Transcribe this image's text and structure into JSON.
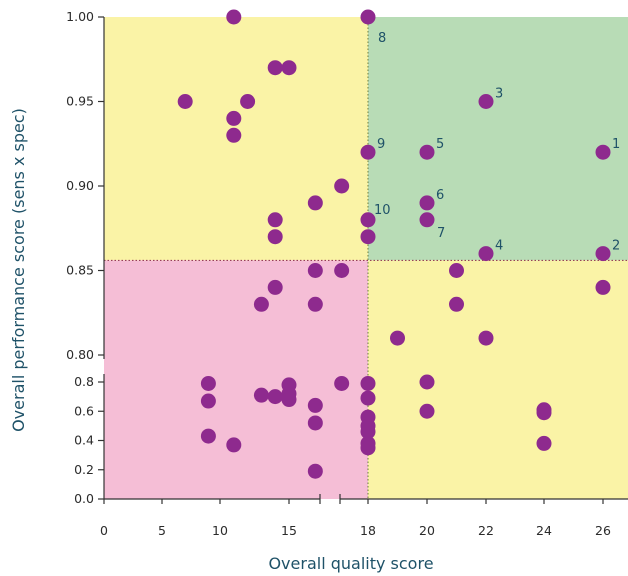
{
  "chart_data": {
    "type": "scatter",
    "xlabel": "Overall quality score",
    "ylabel": "Overall performance score (sens x spec)",
    "x_ticks": [
      "0",
      "5",
      "10",
      "15",
      "18",
      "20",
      "22",
      "24",
      "26"
    ],
    "x_tick_values": [
      0,
      5,
      10,
      15,
      18,
      20,
      22,
      24,
      26
    ],
    "y_upper_ticks": [
      "1.00",
      "0.95",
      "0.90",
      "0.85",
      "0.80"
    ],
    "y_upper_tick_values": [
      1.0,
      0.95,
      0.9,
      0.85,
      0.8
    ],
    "y_lower_ticks": [
      "0.8",
      "0.6",
      "0.4",
      "0.2",
      "0.0"
    ],
    "y_lower_tick_values": [
      0.8,
      0.6,
      0.4,
      0.2,
      0.0
    ],
    "threshold_x": 18,
    "threshold_y": 0.856,
    "colors": {
      "quadrant_top_left": "#faf3a6",
      "quadrant_top_right": "#b8dcb6",
      "quadrant_bottom_left": "#f5bed6",
      "quadrant_bottom_right": "#faf3a6",
      "point": "#8e2a8e",
      "label": "#1f5268",
      "threshold_line": "#6b7b3a"
    },
    "points": [
      {
        "x": 11,
        "y": 1.0
      },
      {
        "x": 18,
        "y": 1.0,
        "label": "8"
      },
      {
        "x": 14,
        "y": 0.97
      },
      {
        "x": 15,
        "y": 0.97
      },
      {
        "x": 7,
        "y": 0.95
      },
      {
        "x": 12,
        "y": 0.95
      },
      {
        "x": 22,
        "y": 0.95,
        "label": "3"
      },
      {
        "x": 11,
        "y": 0.94
      },
      {
        "x": 11,
        "y": 0.93
      },
      {
        "x": 18,
        "y": 0.92,
        "label": "9"
      },
      {
        "x": 20,
        "y": 0.92,
        "label": "5"
      },
      {
        "x": 26,
        "y": 0.92,
        "label": "1"
      },
      {
        "x": 17,
        "y": 0.9
      },
      {
        "x": 16,
        "y": 0.89
      },
      {
        "x": 20,
        "y": 0.89,
        "label": "6"
      },
      {
        "x": 14,
        "y": 0.88
      },
      {
        "x": 18,
        "y": 0.88,
        "label": "10"
      },
      {
        "x": 20,
        "y": 0.88,
        "label": "7"
      },
      {
        "x": 14,
        "y": 0.87
      },
      {
        "x": 18,
        "y": 0.87
      },
      {
        "x": 22,
        "y": 0.86,
        "label": "4"
      },
      {
        "x": 26,
        "y": 0.86,
        "label": "2"
      },
      {
        "x": 16,
        "y": 0.85
      },
      {
        "x": 17,
        "y": 0.85
      },
      {
        "x": 21,
        "y": 0.85
      },
      {
        "x": 14,
        "y": 0.84
      },
      {
        "x": 26,
        "y": 0.84
      },
      {
        "x": 13,
        "y": 0.83
      },
      {
        "x": 16,
        "y": 0.83
      },
      {
        "x": 21,
        "y": 0.83
      },
      {
        "x": 19,
        "y": 0.81
      },
      {
        "x": 22,
        "y": 0.81
      },
      {
        "x": 9,
        "y": 0.79
      },
      {
        "x": 15,
        "y": 0.78
      },
      {
        "x": 17,
        "y": 0.79
      },
      {
        "x": 18,
        "y": 0.79
      },
      {
        "x": 20,
        "y": 0.8
      },
      {
        "x": 13,
        "y": 0.71
      },
      {
        "x": 14,
        "y": 0.7
      },
      {
        "x": 15,
        "y": 0.72
      },
      {
        "x": 15,
        "y": 0.68
      },
      {
        "x": 9,
        "y": 0.67
      },
      {
        "x": 16,
        "y": 0.64
      },
      {
        "x": 18,
        "y": 0.69
      },
      {
        "x": 20,
        "y": 0.6
      },
      {
        "x": 24,
        "y": 0.61
      },
      {
        "x": 24,
        "y": 0.59
      },
      {
        "x": 16,
        "y": 0.52
      },
      {
        "x": 18,
        "y": 0.56
      },
      {
        "x": 18,
        "y": 0.5
      },
      {
        "x": 18,
        "y": 0.46
      },
      {
        "x": 9,
        "y": 0.43
      },
      {
        "x": 11,
        "y": 0.37
      },
      {
        "x": 18,
        "y": 0.38
      },
      {
        "x": 18,
        "y": 0.35
      },
      {
        "x": 24,
        "y": 0.38
      },
      {
        "x": 16,
        "y": 0.19
      }
    ],
    "grid": false,
    "legend": "none"
  }
}
